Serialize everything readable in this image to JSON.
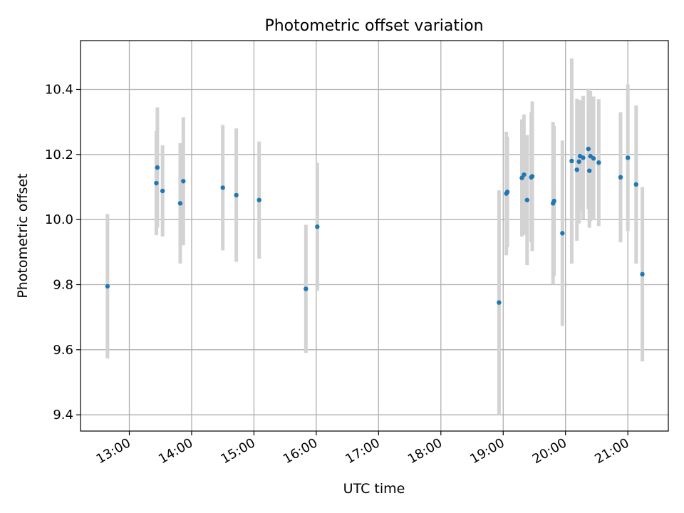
{
  "chart_data": {
    "type": "scatter",
    "title": "Photometric offset variation",
    "xlabel": "UTC time",
    "ylabel": "Photometric offset",
    "x_ticks": [
      "13:00",
      "14:00",
      "15:00",
      "16:00",
      "17:00",
      "18:00",
      "19:00",
      "20:00",
      "21:00"
    ],
    "y_ticks": [
      "9.4",
      "9.6",
      "9.8",
      "10.0",
      "10.2",
      "10.4"
    ],
    "xlim": [
      "12:13",
      "21:39"
    ],
    "ylim": [
      9.35,
      10.55
    ],
    "grid": true,
    "colors": {
      "points": "#1f77b4",
      "errorbars": "#d3d3d3",
      "grid": "#b0b0b0"
    },
    "points": [
      {
        "t": "12:39",
        "y": 9.795,
        "err": 0.222
      },
      {
        "t": "13:26",
        "y": 10.112,
        "err": 0.16
      },
      {
        "t": "13:27",
        "y": 10.16,
        "err": 0.185
      },
      {
        "t": "13:32",
        "y": 10.088,
        "err": 0.14
      },
      {
        "t": "13:49",
        "y": 10.05,
        "err": 0.185
      },
      {
        "t": "13:52",
        "y": 10.118,
        "err": 0.197
      },
      {
        "t": "14:30",
        "y": 10.098,
        "err": 0.193
      },
      {
        "t": "14:43",
        "y": 10.075,
        "err": 0.205
      },
      {
        "t": "15:05",
        "y": 10.06,
        "err": 0.18
      },
      {
        "t": "15:50",
        "y": 9.787,
        "err": 0.197
      },
      {
        "t": "16:01",
        "y": 9.978,
        "err": 0.197
      },
      {
        "t": "18:56",
        "y": 9.745,
        "err": 0.345
      },
      {
        "t": "19:03",
        "y": 10.08,
        "err": 0.19
      },
      {
        "t": "19:04",
        "y": 10.085,
        "err": 0.17
      },
      {
        "t": "19:18",
        "y": 10.128,
        "err": 0.18
      },
      {
        "t": "19:20",
        "y": 10.138,
        "err": 0.185
      },
      {
        "t": "19:23",
        "y": 10.06,
        "err": 0.2
      },
      {
        "t": "19:27",
        "y": 10.13,
        "err": 0.2
      },
      {
        "t": "19:28",
        "y": 10.133,
        "err": 0.23
      },
      {
        "t": "19:48",
        "y": 10.05,
        "err": 0.25
      },
      {
        "t": "19:49",
        "y": 10.057,
        "err": 0.23
      },
      {
        "t": "19:57",
        "y": 9.958,
        "err": 0.285
      },
      {
        "t": "20:06",
        "y": 10.18,
        "err": 0.315
      },
      {
        "t": "20:11",
        "y": 10.153,
        "err": 0.218
      },
      {
        "t": "20:13",
        "y": 10.178,
        "err": 0.19
      },
      {
        "t": "20:14",
        "y": 10.195,
        "err": 0.17
      },
      {
        "t": "20:17",
        "y": 10.19,
        "err": 0.19
      },
      {
        "t": "20:22",
        "y": 10.217,
        "err": 0.185
      },
      {
        "t": "20:23",
        "y": 10.15,
        "err": 0.175
      },
      {
        "t": "20:24",
        "y": 10.195,
        "err": 0.2
      },
      {
        "t": "20:27",
        "y": 10.188,
        "err": 0.19
      },
      {
        "t": "20:32",
        "y": 10.175,
        "err": 0.195
      },
      {
        "t": "20:53",
        "y": 10.13,
        "err": 0.2
      },
      {
        "t": "21:00",
        "y": 10.19,
        "err": 0.225
      },
      {
        "t": "21:08",
        "y": 10.108,
        "err": 0.243
      },
      {
        "t": "21:14",
        "y": 9.832,
        "err": 0.268
      }
    ]
  }
}
